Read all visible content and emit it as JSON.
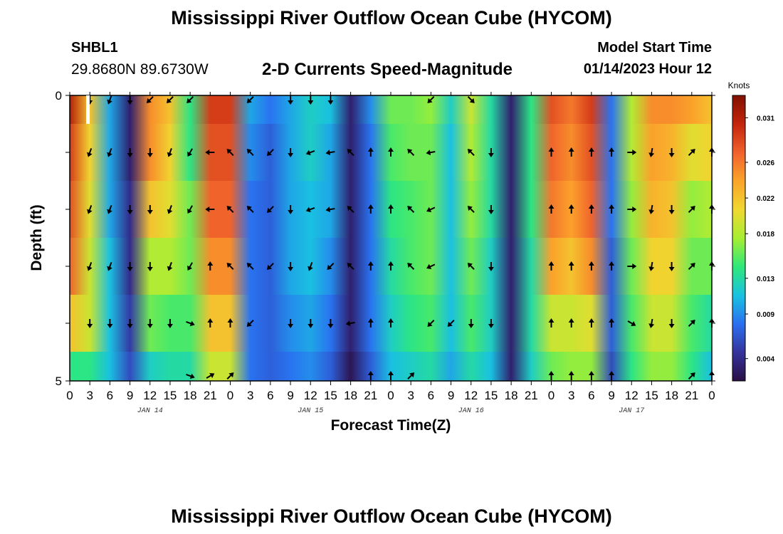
{
  "header": {
    "title": "Mississippi River Outflow Ocean Cube (HYCOM)",
    "station_id": "SHBL1",
    "station_coords": "29.8680N  89.6730W",
    "subtitle": "2-D Currents Speed-Magnitude",
    "model_start_label": "Model Start Time",
    "model_start_value": "01/14/2023 Hour 12"
  },
  "footer": {
    "title": "Mississippi River Outflow Ocean Cube (HYCOM)"
  },
  "chart_data": {
    "type": "heatmap",
    "title": "2-D Currents Speed-Magnitude",
    "xlabel": "Forecast Time(Z)",
    "ylabel": "Depth (ft)",
    "x_tick_labels": [
      "0",
      "3",
      "6",
      "9",
      "12",
      "15",
      "18",
      "21",
      "0",
      "3",
      "6",
      "9",
      "12",
      "15",
      "18",
      "21",
      "0",
      "3",
      "6",
      "9",
      "12",
      "15",
      "18",
      "21",
      "0",
      "3",
      "6",
      "9",
      "12",
      "15",
      "18",
      "21",
      "0"
    ],
    "date_labels": [
      "JAN 14",
      "JAN 15",
      "JAN 16",
      "JAN 17"
    ],
    "y_tick_labels": [
      "0",
      "5"
    ],
    "ylim": [
      0,
      5
    ],
    "colorbar": {
      "label": "Knots",
      "ticks": [
        "0.004",
        "0.009",
        "0.013",
        "0.018",
        "0.022",
        "0.026",
        "0.031"
      ],
      "vmin": 0.0015,
      "vmax": 0.0335,
      "colors": [
        "#2b0f45",
        "#35339d",
        "#2a70f0",
        "#19c3e0",
        "#2ee87a",
        "#a7ee33",
        "#f0d830",
        "#fba32b",
        "#f0622c",
        "#c3240c",
        "#821002"
      ]
    },
    "x_hours": [
      0,
      3,
      6,
      9,
      12,
      15,
      18,
      21,
      24,
      27,
      30,
      33,
      36,
      39,
      42,
      45,
      48,
      51,
      54,
      57,
      60,
      63,
      66,
      69,
      72,
      75,
      78,
      81,
      84,
      87,
      90,
      93,
      96
    ],
    "depth_rows": [
      "0-0.5",
      "0.5-1.5",
      "1.5-2.5",
      "2.5-3.5",
      "3.5-4.5",
      "4.5-5"
    ],
    "speed_knots": [
      [
        0.031,
        0.022,
        0.01,
        0.003,
        0.025,
        0.022,
        0.014,
        0.029,
        0.029,
        0.01,
        0.008,
        0.01,
        0.012,
        0.011,
        0.003,
        0.009,
        0.016,
        0.016,
        0.017,
        0.012,
        0.019,
        0.013,
        0.003,
        0.014,
        0.028,
        0.026,
        0.029,
        0.008,
        0.018,
        0.025,
        0.025,
        0.024,
        0.022
      ],
      [
        0.029,
        0.021,
        0.01,
        0.003,
        0.025,
        0.021,
        0.014,
        0.028,
        0.028,
        0.009,
        0.007,
        0.01,
        0.012,
        0.01,
        0.003,
        0.008,
        0.015,
        0.016,
        0.016,
        0.011,
        0.018,
        0.013,
        0.003,
        0.014,
        0.027,
        0.025,
        0.028,
        0.008,
        0.018,
        0.024,
        0.023,
        0.02,
        0.021
      ],
      [
        0.028,
        0.02,
        0.01,
        0.004,
        0.022,
        0.02,
        0.016,
        0.027,
        0.027,
        0.008,
        0.007,
        0.01,
        0.011,
        0.01,
        0.003,
        0.008,
        0.014,
        0.015,
        0.016,
        0.011,
        0.017,
        0.013,
        0.003,
        0.014,
        0.026,
        0.024,
        0.027,
        0.008,
        0.017,
        0.023,
        0.022,
        0.017,
        0.018
      ],
      [
        0.027,
        0.019,
        0.011,
        0.004,
        0.018,
        0.018,
        0.016,
        0.025,
        0.025,
        0.008,
        0.007,
        0.01,
        0.011,
        0.009,
        0.003,
        0.008,
        0.013,
        0.015,
        0.016,
        0.011,
        0.016,
        0.012,
        0.003,
        0.013,
        0.024,
        0.022,
        0.025,
        0.007,
        0.016,
        0.021,
        0.021,
        0.016,
        0.016
      ],
      [
        0.022,
        0.019,
        0.011,
        0.005,
        0.016,
        0.015,
        0.015,
        0.022,
        0.022,
        0.008,
        0.007,
        0.009,
        0.01,
        0.008,
        0.003,
        0.008,
        0.012,
        0.014,
        0.015,
        0.011,
        0.015,
        0.012,
        0.003,
        0.013,
        0.019,
        0.019,
        0.02,
        0.007,
        0.015,
        0.019,
        0.019,
        0.015,
        0.013
      ],
      [
        0.014,
        0.014,
        0.011,
        0.006,
        0.012,
        0.013,
        0.013,
        0.019,
        0.019,
        0.008,
        0.007,
        0.008,
        0.009,
        0.007,
        0.002,
        0.007,
        0.011,
        0.012,
        0.013,
        0.01,
        0.013,
        0.011,
        0.003,
        0.012,
        0.016,
        0.017,
        0.017,
        0.006,
        0.014,
        0.017,
        0.017,
        0.014,
        0.011
      ]
    ],
    "arrow_directions_deg": [
      [
        null,
        180,
        200,
        180,
        225,
        225,
        225,
        null,
        null,
        225,
        null,
        180,
        180,
        180,
        null,
        null,
        null,
        null,
        225,
        null,
        135,
        null,
        null,
        null,
        null,
        null,
        null,
        null,
        null,
        null,
        null,
        null,
        null
      ],
      [
        null,
        200,
        200,
        180,
        180,
        200,
        210,
        270,
        315,
        315,
        225,
        180,
        250,
        260,
        315,
        0,
        0,
        315,
        260,
        null,
        315,
        180,
        null,
        null,
        0,
        0,
        0,
        0,
        90,
        190,
        180,
        45,
        0
      ],
      [
        null,
        200,
        200,
        180,
        180,
        200,
        210,
        270,
        315,
        315,
        225,
        180,
        250,
        260,
        315,
        0,
        0,
        315,
        245,
        null,
        315,
        180,
        null,
        null,
        0,
        0,
        0,
        0,
        90,
        190,
        180,
        45,
        0
      ],
      [
        null,
        200,
        200,
        180,
        180,
        200,
        210,
        0,
        315,
        315,
        225,
        180,
        200,
        225,
        315,
        0,
        0,
        315,
        245,
        null,
        315,
        180,
        null,
        null,
        0,
        0,
        0,
        0,
        90,
        190,
        180,
        45,
        0
      ],
      [
        null,
        180,
        180,
        180,
        180,
        180,
        110,
        0,
        0,
        225,
        null,
        180,
        180,
        180,
        260,
        0,
        0,
        null,
        225,
        225,
        180,
        180,
        null,
        null,
        0,
        0,
        0,
        0,
        120,
        190,
        180,
        45,
        0
      ],
      [
        null,
        null,
        null,
        null,
        null,
        null,
        110,
        60,
        45,
        null,
        null,
        null,
        null,
        null,
        null,
        0,
        0,
        45,
        null,
        null,
        null,
        null,
        null,
        null,
        0,
        0,
        0,
        0,
        null,
        null,
        null,
        45,
        0
      ]
    ]
  }
}
